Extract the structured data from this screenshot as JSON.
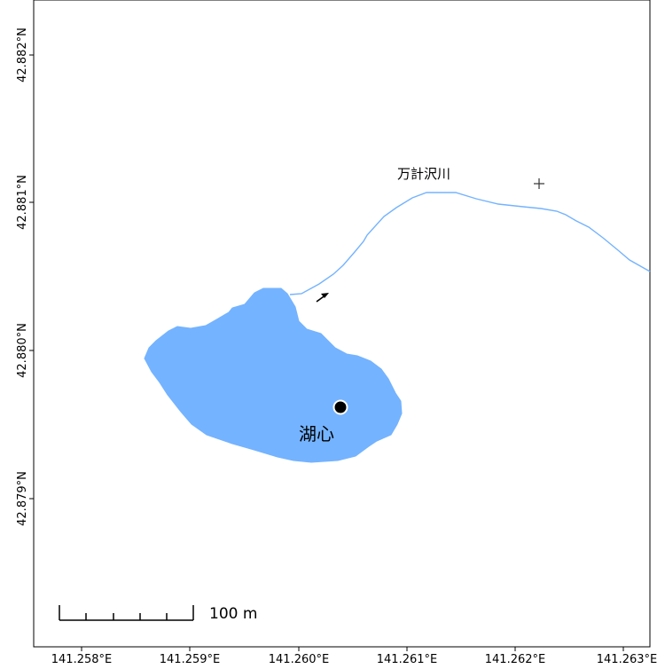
{
  "map": {
    "colors": {
      "water": "#74b3ff",
      "river": "#74b3ff",
      "frame": "#000000",
      "text": "#000000",
      "marker_fill": "#000000",
      "marker_ring": "#ffffff"
    },
    "labels": {
      "river_name": "万計沢川",
      "lake_center": "湖心"
    },
    "lat_ticks": [
      "42.882°N",
      "42.881°N",
      "42.880°N",
      "42.879°N"
    ],
    "lon_ticks": [
      "141.258°E",
      "141.259°E",
      "141.260°E",
      "141.261°E",
      "141.262°E",
      "141.263°E"
    ],
    "scale_bar": {
      "label": "100 m",
      "segments": 5
    },
    "symbols": {
      "crosshair": "plus-icon",
      "flow_arrow": "arrow-up-right-icon",
      "center_point": "filled-circle-icon"
    }
  }
}
